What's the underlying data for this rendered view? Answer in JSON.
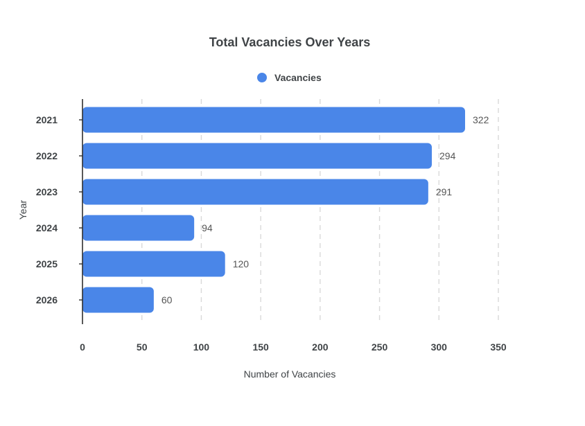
{
  "chart_data": {
    "type": "bar",
    "orientation": "horizontal",
    "title": "Total Vacancies Over Years",
    "xlabel": "Number of Vacancies",
    "ylabel": "Year",
    "categories": [
      "2021",
      "2022",
      "2023",
      "2024",
      "2025",
      "2026"
    ],
    "series": [
      {
        "name": "Vacancies",
        "values": [
          322,
          294,
          291,
          94,
          120,
          60
        ],
        "color": "#4a86e8"
      }
    ],
    "xlim": [
      0,
      350
    ],
    "xticks": [
      0,
      50,
      100,
      150,
      200,
      250,
      300,
      350
    ],
    "grid": true,
    "legend": "top-center",
    "data_labels": true
  }
}
